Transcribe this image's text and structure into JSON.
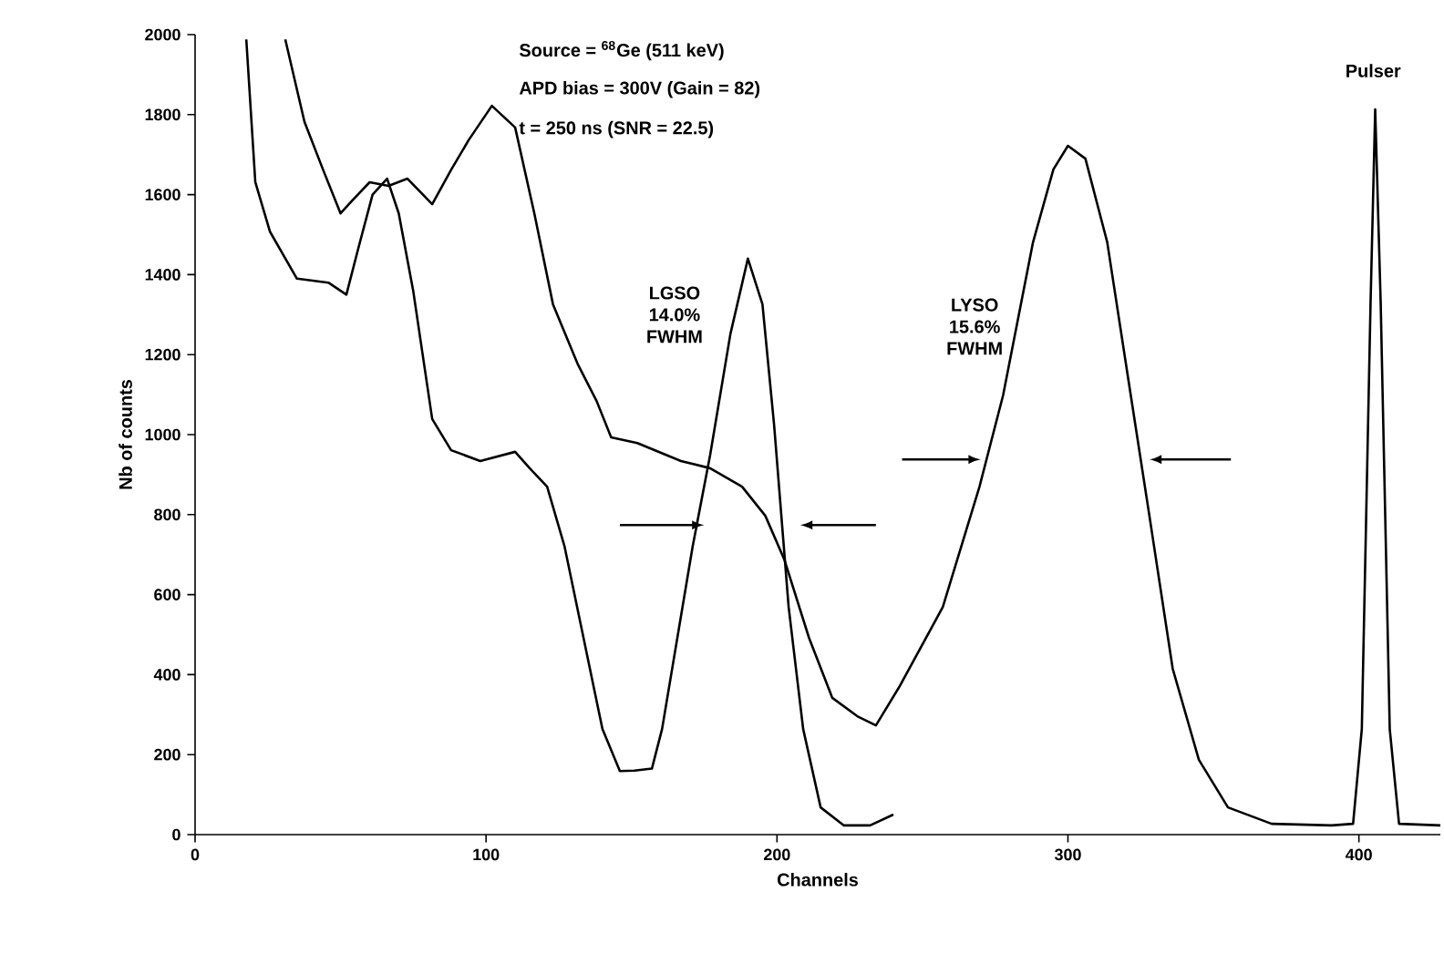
{
  "chart_data": {
    "type": "line",
    "xlabel": "Channels",
    "ylabel": "Nb of counts",
    "xlim": [
      0,
      428
    ],
    "ylim": [
      0,
      2000
    ],
    "xticks": [
      0,
      100,
      200,
      300,
      400
    ],
    "yticks": [
      0,
      200,
      400,
      600,
      800,
      1000,
      1200,
      1400,
      1600,
      1800,
      2000
    ],
    "grid": false,
    "marker": "none",
    "line_style": "solid",
    "series": [
      {
        "color": "#000000",
        "x": [
          17.6,
          20.7,
          25.7,
          35,
          45.8,
          52,
          56,
          61,
          66,
          70,
          75,
          81.5,
          88,
          98,
          110,
          115,
          121,
          127,
          133.5,
          140,
          146,
          151,
          157,
          160.5,
          171,
          177,
          184,
          190,
          195,
          199,
          204,
          209,
          215,
          223,
          232,
          240
        ],
        "values": [
          1988,
          1631,
          1508,
          1390,
          1380,
          1350,
          1463,
          1600,
          1640,
          1553,
          1358,
          1039,
          961,
          934,
          957,
          916,
          870,
          720,
          492,
          264,
          159,
          160,
          165,
          264,
          720,
          948,
          1252,
          1440,
          1326,
          1025,
          569,
          264,
          68,
          23,
          23,
          50
        ]
      },
      {
        "color": "#000000",
        "x": [
          31,
          37.6,
          44,
          50,
          54,
          60,
          66.5,
          73,
          81.5,
          88,
          94,
          102,
          110,
          116.6,
          123,
          131.6,
          138,
          143,
          152,
          167,
          177,
          188,
          196,
          202.5,
          211,
          219,
          227.6,
          234,
          242,
          257,
          269.6,
          277.7,
          288,
          295,
          300,
          306,
          313.5,
          321.6,
          328,
          336,
          345,
          355,
          370,
          390.6,
          398,
          401,
          404,
          405.6,
          407.5,
          410.6,
          413.8,
          428
        ],
        "values": [
          1988,
          1782,
          1662,
          1553,
          1585,
          1631,
          1622,
          1640,
          1576,
          1662,
          1736,
          1822,
          1768,
          1553,
          1326,
          1175,
          1084,
          993,
          979,
          934,
          916,
          870,
          797,
          688,
          492,
          342,
          296,
          273,
          369,
          569,
          870,
          1098,
          1481,
          1663,
          1722,
          1690,
          1481,
          1098,
          797,
          415,
          187,
          68,
          27,
          23,
          27,
          264,
          1326,
          1813,
          1326,
          264,
          27,
          23
        ]
      }
    ],
    "annotations": [
      "Source = $^{68}$Ge (511 keV)",
      "APD bias = 300V (Gain = 82)",
      "t = 250 ns (SNR = 22.5)",
      "LGSO 14.0% FWHM",
      "LYSO 15.6% FWHM",
      "Pulser"
    ]
  }
}
